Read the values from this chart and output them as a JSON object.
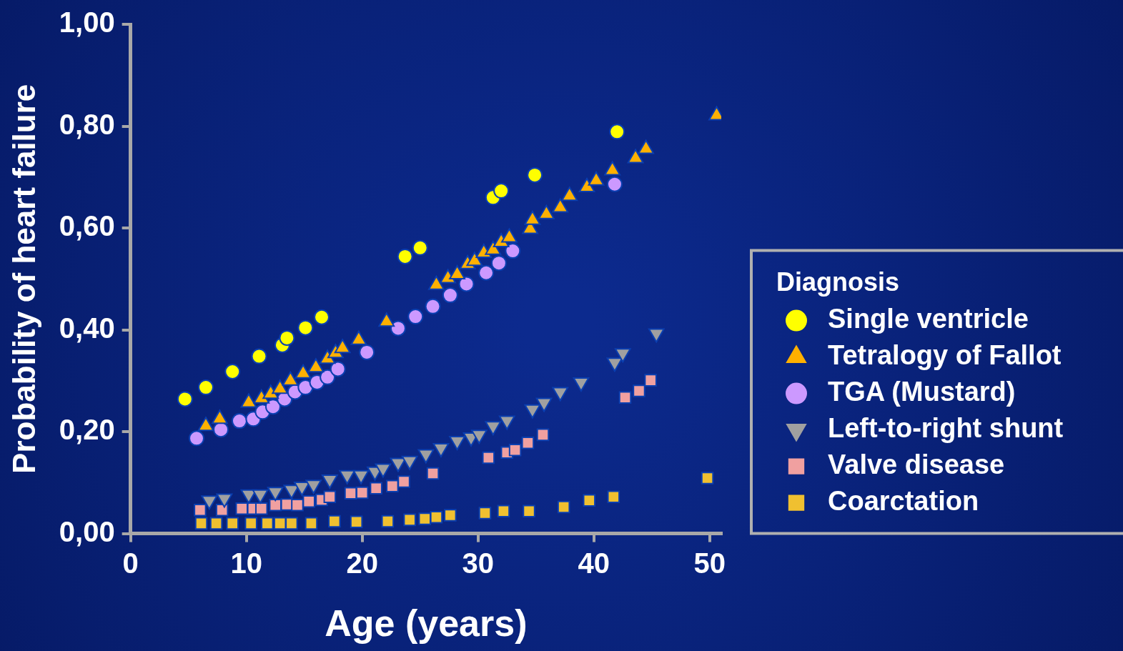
{
  "chart_data": {
    "type": "scatter",
    "xlabel": "Age (years)",
    "ylabel": "Probability of heart failure",
    "legend_title": "Diagnosis",
    "legend": "right",
    "grid": false,
    "xlim": [
      0,
      51
    ],
    "xticks": [
      0,
      10,
      20,
      30,
      40,
      50
    ],
    "ylim": [
      0,
      1
    ],
    "yticks": [
      {
        "value": 0,
        "label": "0,00"
      },
      {
        "value": 0.2,
        "label": "0,20"
      },
      {
        "value": 0.4,
        "label": "0,40"
      },
      {
        "value": 0.6,
        "label": "0,60"
      },
      {
        "value": 0.8,
        "label": "0,80"
      },
      {
        "value": 1,
        "label": "1,00"
      }
    ],
    "series": [
      {
        "name": "Single ventricle",
        "color": "#ffff00",
        "marker": "circle",
        "x": [
          4.7,
          6.5,
          8.8,
          11.1,
          13.1,
          13.5,
          15.1,
          16.5,
          23.7,
          25.0,
          31.3,
          32.0,
          34.9,
          42.0
        ],
        "values": [
          0.264,
          0.287,
          0.318,
          0.348,
          0.37,
          0.384,
          0.404,
          0.425,
          0.544,
          0.561,
          0.66,
          0.673,
          0.704,
          0.789
        ]
      },
      {
        "name": "Tetralogy of Fallot",
        "color": "#ffb000",
        "marker": "triangle",
        "x": [
          6.5,
          7.7,
          10.2,
          11.3,
          12.1,
          12.9,
          13.8,
          14.9,
          16.0,
          17.0,
          17.7,
          18.3,
          19.7,
          22.1,
          26.4,
          27.4,
          28.2,
          29.1,
          29.7,
          30.5,
          31.3,
          32.0,
          32.7,
          34.5,
          34.7,
          35.9,
          37.1,
          37.9,
          39.4,
          40.2,
          41.6,
          43.6,
          44.5,
          50.6
        ],
        "values": [
          0.211,
          0.225,
          0.257,
          0.265,
          0.274,
          0.284,
          0.3,
          0.314,
          0.326,
          0.343,
          0.354,
          0.364,
          0.38,
          0.416,
          0.488,
          0.501,
          0.509,
          0.529,
          0.535,
          0.551,
          0.557,
          0.572,
          0.581,
          0.598,
          0.616,
          0.627,
          0.64,
          0.663,
          0.68,
          0.693,
          0.713,
          0.737,
          0.755,
          0.821
        ]
      },
      {
        "name": "TGA (Mustard)",
        "color": "#cc99ff",
        "marker": "circle",
        "x": [
          5.7,
          7.8,
          9.4,
          10.6,
          11.4,
          12.3,
          13.3,
          14.2,
          15.1,
          16.1,
          17.0,
          17.9,
          20.4,
          23.1,
          24.6,
          26.1,
          27.6,
          29.0,
          30.7,
          31.8,
          33.0,
          41.8
        ],
        "values": [
          0.187,
          0.204,
          0.221,
          0.225,
          0.239,
          0.249,
          0.264,
          0.278,
          0.287,
          0.297,
          0.307,
          0.323,
          0.356,
          0.403,
          0.426,
          0.446,
          0.468,
          0.49,
          0.512,
          0.531,
          0.555,
          0.686
        ]
      },
      {
        "name": "Left-to-right shunt",
        "color": "#a0a0a0",
        "marker": "triangle-down",
        "x": [
          6.8,
          8.1,
          10.2,
          11.2,
          12.5,
          13.9,
          14.8,
          15.8,
          17.2,
          18.7,
          19.9,
          21.1,
          21.8,
          23.1,
          24.1,
          25.5,
          26.8,
          28.2,
          29.4,
          30.1,
          31.3,
          32.5,
          34.7,
          35.7,
          37.1,
          38.9,
          41.8,
          42.5,
          45.4
        ],
        "values": [
          0.065,
          0.069,
          0.077,
          0.077,
          0.082,
          0.086,
          0.092,
          0.096,
          0.106,
          0.115,
          0.115,
          0.122,
          0.128,
          0.139,
          0.143,
          0.156,
          0.168,
          0.182,
          0.189,
          0.194,
          0.211,
          0.222,
          0.244,
          0.257,
          0.278,
          0.297,
          0.336,
          0.354,
          0.393
        ]
      },
      {
        "name": "Valve disease",
        "color": "#f0a0a0",
        "marker": "square",
        "x": [
          6.0,
          7.9,
          9.6,
          10.6,
          11.3,
          12.5,
          13.5,
          14.4,
          15.4,
          16.5,
          17.2,
          19.0,
          20.0,
          21.2,
          22.6,
          23.6,
          26.1,
          30.9,
          32.5,
          33.2,
          34.3,
          35.6,
          42.7,
          43.9,
          44.9
        ],
        "values": [
          0.046,
          0.046,
          0.049,
          0.049,
          0.049,
          0.056,
          0.057,
          0.056,
          0.063,
          0.066,
          0.072,
          0.079,
          0.08,
          0.089,
          0.093,
          0.102,
          0.118,
          0.149,
          0.159,
          0.164,
          0.178,
          0.194,
          0.267,
          0.28,
          0.301
        ]
      },
      {
        "name": "Coarctation",
        "color": "#f0c030",
        "marker": "square",
        "x": [
          6.1,
          7.4,
          8.8,
          10.4,
          11.8,
          12.9,
          13.9,
          15.6,
          17.6,
          19.5,
          22.2,
          24.1,
          25.4,
          26.4,
          27.6,
          30.6,
          32.2,
          34.4,
          37.4,
          39.6,
          41.7,
          49.8
        ],
        "values": [
          0.02,
          0.02,
          0.02,
          0.02,
          0.02,
          0.02,
          0.02,
          0.02,
          0.024,
          0.023,
          0.024,
          0.027,
          0.029,
          0.032,
          0.036,
          0.04,
          0.044,
          0.044,
          0.052,
          0.065,
          0.072,
          0.109
        ]
      }
    ]
  }
}
